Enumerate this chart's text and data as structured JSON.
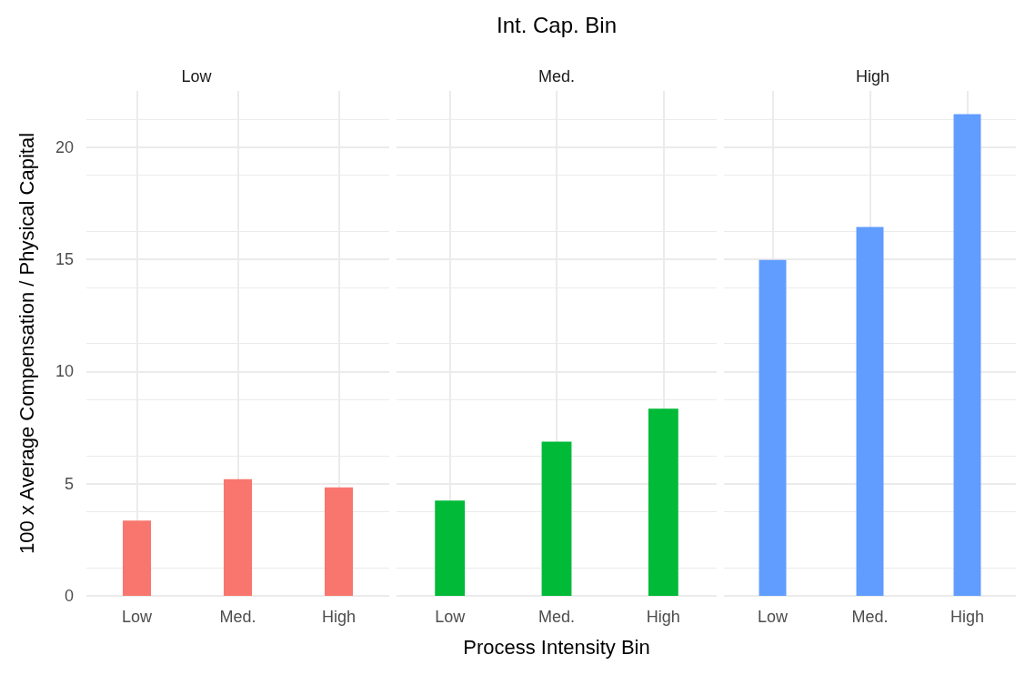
{
  "chart_data": [
    {
      "type": "bar",
      "subtitle": "Low",
      "ylabel": "100 x Average Compensation / Physical Capital",
      "categories": [
        "Low",
        "Med.",
        "High"
      ],
      "values": [
        3.35,
        5.2,
        4.83
      ],
      "color": "#f8766d",
      "ylim": [
        0,
        22.5
      ],
      "yticks": [
        0,
        5,
        10,
        15,
        20
      ],
      "grid": true
    },
    {
      "type": "bar",
      "title": "Int. Cap. Bin",
      "subtitle": "Med.",
      "xlabel": "Process Intensity Bin",
      "categories": [
        "Low",
        "Med.",
        "High"
      ],
      "values": [
        4.25,
        6.87,
        8.34
      ],
      "color": "#00ba38",
      "ylim": [
        0,
        22.5
      ],
      "yticks": [
        0,
        5,
        10,
        15,
        20
      ],
      "grid": true,
      "tick_labels": "x"
    },
    {
      "type": "bar",
      "subtitle": "High",
      "categories": [
        "Low",
        "Med.",
        "High"
      ],
      "values": [
        14.97,
        16.44,
        21.47
      ],
      "color": "#619cff",
      "ylim": [
        0,
        22.5
      ],
      "yticks": [
        0,
        5,
        10,
        15,
        20
      ],
      "grid": true,
      "tick_labels": "x"
    }
  ]
}
